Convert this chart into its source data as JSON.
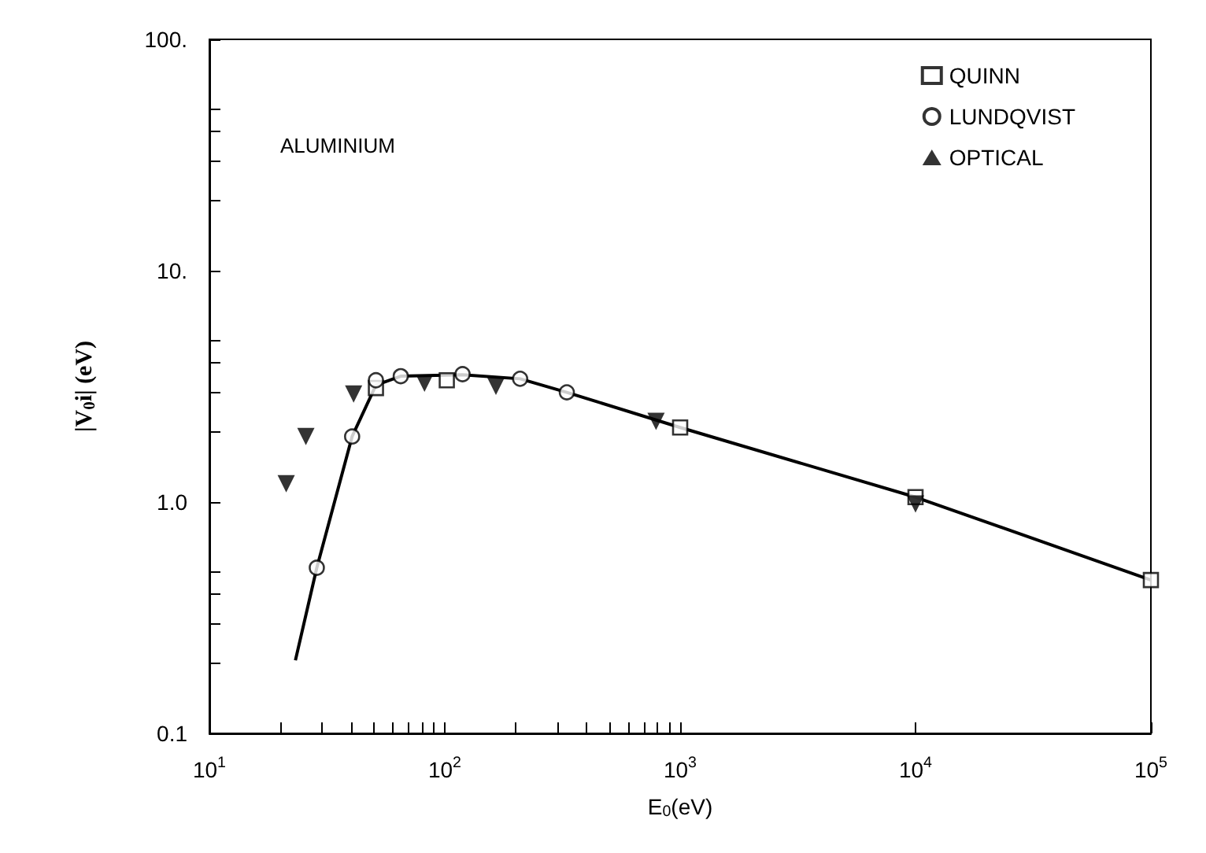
{
  "chart_data": {
    "type": "scatter",
    "xlabel": "E$_{0}$(eV)",
    "ylabel": "|V$_{0}$i| (eV)",
    "log": "xy",
    "grid": false,
    "legend": "top right",
    "annotations": [
      "ALUMINIUM"
    ],
    "xlim": [
      10,
      100000
    ],
    "ylim": [
      0.1,
      100
    ],
    "xticks": [
      {
        "value": 10,
        "label": "10$^{1}$"
      },
      {
        "value": 20,
        "label": null
      },
      {
        "value": 30,
        "label": null
      },
      {
        "value": 40,
        "label": null
      },
      {
        "value": 50,
        "label": null
      },
      {
        "value": 60,
        "label": null
      },
      {
        "value": 70,
        "label": null
      },
      {
        "value": 80,
        "label": null
      },
      {
        "value": 90,
        "label": null
      },
      {
        "value": 100,
        "label": "10$^{2}$"
      },
      {
        "value": 200,
        "label": null
      },
      {
        "value": 300,
        "label": null
      },
      {
        "value": 400,
        "label": null
      },
      {
        "value": 500,
        "label": null
      },
      {
        "value": 600,
        "label": null
      },
      {
        "value": 700,
        "label": null
      },
      {
        "value": 800,
        "label": null
      },
      {
        "value": 900,
        "label": null
      },
      {
        "value": 1000,
        "label": "10$^{3}$"
      },
      {
        "value": 10000,
        "label": "10$^{4}$"
      },
      {
        "value": 100000,
        "label": "10$^{5}$"
      }
    ],
    "yticks": [
      0.1,
      {
        "value": 0.2,
        "label": null
      },
      {
        "value": 0.3,
        "label": null
      },
      {
        "value": 0.4,
        "label": null
      },
      {
        "value": 0.5,
        "label": null
      },
      {
        "value": 1,
        "label": "1.0"
      },
      {
        "value": 2,
        "label": null
      },
      {
        "value": 3,
        "label": null
      },
      {
        "value": 4,
        "label": null
      },
      {
        "value": 5,
        "label": null
      },
      {
        "value": 10,
        "label": "10."
      },
      {
        "value": 20,
        "label": null
      },
      {
        "value": 30,
        "label": null
      },
      {
        "value": 40,
        "label": null
      },
      {
        "value": 50,
        "label": null
      },
      {
        "value": 100,
        "label": "100."
      }
    ],
    "series": [
      {
        "name": "QUINN",
        "color": "#000000",
        "marker": "square",
        "x": [
          51,
          102,
          1000,
          10000,
          100000
        ],
        "values": [
          3.11,
          3.36,
          2.1,
          1.05,
          0.46
        ]
      },
      {
        "name": "LUNDQVIST",
        "color": "#000000",
        "marker": "circle",
        "x": [
          28.6,
          40.4,
          51,
          65,
          119,
          209,
          330
        ],
        "values": [
          0.52,
          1.92,
          3.36,
          3.5,
          3.57,
          3.41,
          2.98
        ]
      },
      {
        "name": "OPTICAL",
        "color": "#000000",
        "marker": "triangle",
        "x": [
          21.2,
          25.7,
          41,
          82,
          165,
          790,
          10000
        ],
        "values": [
          1.2,
          1.92,
          2.93,
          3.26,
          3.16,
          2.23,
          0.98
        ]
      },
      {
        "type": "line",
        "color": "#000000",
        "marker": "none",
        "line_style": "solid",
        "x": [
          23.2,
          28.6,
          40.4,
          51,
          65,
          119,
          209,
          330,
          1000,
          10000,
          100000
        ],
        "values": [
          0.207,
          0.52,
          1.92,
          3.2,
          3.5,
          3.55,
          3.41,
          2.98,
          2.1,
          1.05,
          0.46
        ]
      }
    ]
  }
}
